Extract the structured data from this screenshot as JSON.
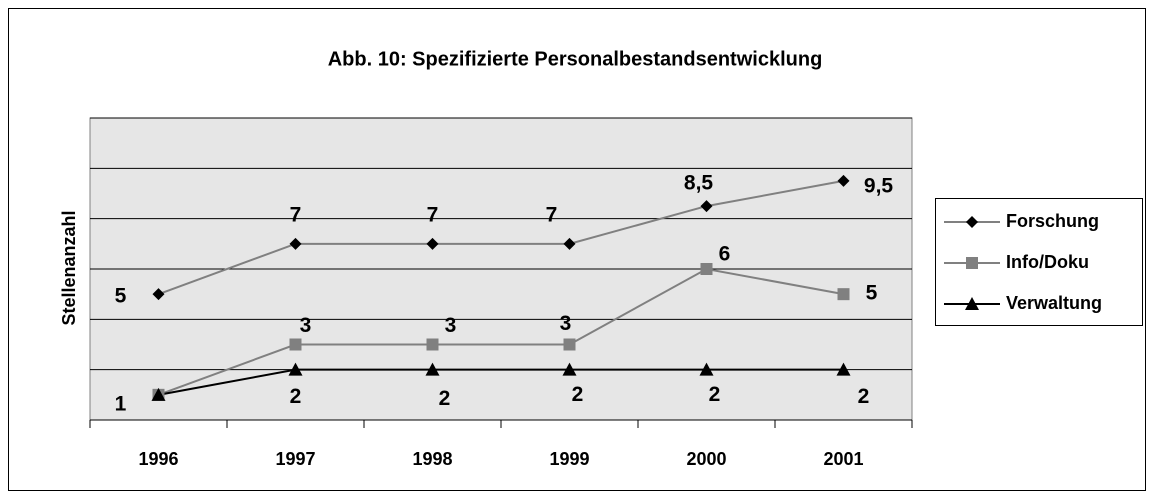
{
  "chart_data": {
    "type": "line",
    "title": "Abb. 10: Spezifizierte Personalbestandsentwicklung",
    "y_label": "Stellenanzahl",
    "categories": [
      "1996",
      "1997",
      "1998",
      "1999",
      "2000",
      "2001"
    ],
    "series": [
      {
        "name": "Forschung",
        "color": "#808080",
        "marker": "diamond",
        "marker_color": "#000000",
        "values": [
          5,
          7,
          7,
          7,
          8.5,
          9.5
        ],
        "value_labels": [
          "5",
          "7",
          "7",
          "7",
          "8,5",
          "9,5"
        ]
      },
      {
        "name": "Info/Doku",
        "color": "#808080",
        "marker": "square",
        "marker_color": "#808080",
        "values": [
          1,
          3,
          3,
          3,
          6,
          5
        ],
        "value_labels": [
          null,
          "3",
          "3",
          "3",
          "6",
          "5"
        ]
      },
      {
        "name": "Verwaltung",
        "color": "#000000",
        "marker": "triangle",
        "marker_color": "#000000",
        "values": [
          1,
          2,
          2,
          2,
          2,
          2
        ],
        "value_labels": [
          "1",
          "2",
          "2",
          "2",
          "2",
          "2"
        ]
      }
    ],
    "ylim": [
      0,
      12
    ],
    "yticks": [
      0,
      2,
      4,
      6,
      8,
      10,
      12
    ],
    "grid": true,
    "legend": "right"
  }
}
